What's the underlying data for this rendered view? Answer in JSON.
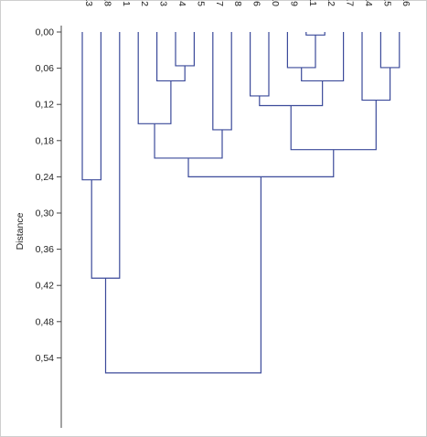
{
  "chart_data": {
    "type": "dendrogram",
    "ylabel": "Distance",
    "ylim": [
      0.0,
      0.6
    ],
    "y_ticks": [
      "0,00",
      "0,06",
      "0,12",
      "0,18",
      "0,24",
      "0,30",
      "0,36",
      "0,42",
      "0,48",
      "0,54"
    ],
    "y_tick_values": [
      0.0,
      0.06,
      0.12,
      0.18,
      0.24,
      0.3,
      0.36,
      0.42,
      0.48,
      0.54
    ],
    "leaves": [
      "13",
      "18",
      "1",
      "2",
      "3",
      "4",
      "5",
      "7",
      "8",
      "6",
      "10",
      "9",
      "11",
      "12",
      "17",
      "14",
      "15",
      "16"
    ],
    "merges": [
      {
        "id": "A",
        "children": [
          "11",
          "12"
        ],
        "distance": 0.005
      },
      {
        "id": "B",
        "children": [
          "4",
          "5"
        ],
        "distance": 0.056
      },
      {
        "id": "C",
        "children": [
          "9",
          "A"
        ],
        "distance": 0.059
      },
      {
        "id": "D",
        "children": [
          "15",
          "16"
        ],
        "distance": 0.059
      },
      {
        "id": "E",
        "children": [
          "C",
          "17"
        ],
        "distance": 0.081
      },
      {
        "id": "F",
        "children": [
          "3",
          "B"
        ],
        "distance": 0.081
      },
      {
        "id": "G",
        "children": [
          "6",
          "10"
        ],
        "distance": 0.106
      },
      {
        "id": "H",
        "children": [
          "14",
          "D"
        ],
        "distance": 0.113
      },
      {
        "id": "I",
        "children": [
          "G",
          "E"
        ],
        "distance": 0.122
      },
      {
        "id": "J",
        "children": [
          "2",
          "F"
        ],
        "distance": 0.152
      },
      {
        "id": "K",
        "children": [
          "7",
          "8"
        ],
        "distance": 0.162
      },
      {
        "id": "L",
        "children": [
          "I",
          "H"
        ],
        "distance": 0.195
      },
      {
        "id": "M",
        "children": [
          "J",
          "K"
        ],
        "distance": 0.209
      },
      {
        "id": "N",
        "children": [
          "M",
          "L"
        ],
        "distance": 0.24
      },
      {
        "id": "O",
        "children": [
          "13",
          "18"
        ],
        "distance": 0.245
      },
      {
        "id": "P",
        "children": [
          "O",
          "1"
        ],
        "distance": 0.408
      },
      {
        "id": "Q",
        "children": [
          "P",
          "N"
        ],
        "distance": 0.565
      }
    ],
    "line_color": "#3b4a9a",
    "axis_color": "#444444"
  }
}
